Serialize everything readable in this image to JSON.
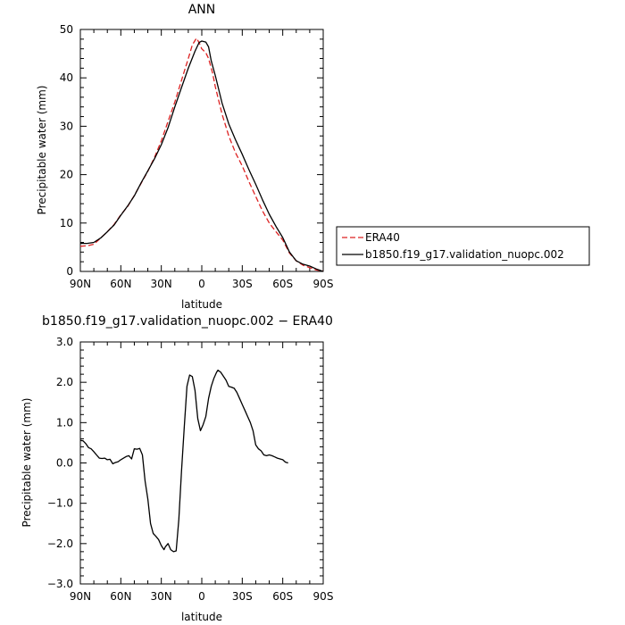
{
  "chart_data": [
    {
      "type": "line",
      "title": "ANN",
      "xlabel": "latitude",
      "ylabel": "Precipitable water (mm)",
      "xlim": [
        90,
        -90
      ],
      "ylim": [
        0,
        50
      ],
      "x_ticks": [
        90,
        60,
        30,
        0,
        -30,
        -60,
        -90
      ],
      "x_tick_labels": [
        "90N",
        "60N",
        "30N",
        "0",
        "30S",
        "60S",
        "90S"
      ],
      "y_ticks": [
        0,
        10,
        20,
        30,
        40,
        50
      ],
      "y_tick_labels": [
        "0",
        "10",
        "20",
        "30",
        "40",
        "50"
      ],
      "grid": false,
      "legend_position": "right",
      "series": [
        {
          "name": "ERA40",
          "color": "#dd2222",
          "dash": "dashed",
          "points": [
            [
              90,
              5.2
            ],
            [
              85,
              5.3
            ],
            [
              80,
              5.6
            ],
            [
              75,
              6.9
            ],
            [
              70,
              8.2
            ],
            [
              65,
              9.7
            ],
            [
              60,
              11.7
            ],
            [
              55,
              13.4
            ],
            [
              50,
              15.7
            ],
            [
              45,
              18.2
            ],
            [
              40,
              20.7
            ],
            [
              35,
              23.6
            ],
            [
              30,
              27.0
            ],
            [
              25,
              31.0
            ],
            [
              20,
              35.0
            ],
            [
              15,
              39.5
            ],
            [
              10,
              44.0
            ],
            [
              7,
              46.8
            ],
            [
              4,
              48.2
            ],
            [
              2,
              47.3
            ],
            [
              0,
              46.0
            ],
            [
              -3,
              45.2
            ],
            [
              -5,
              44.0
            ],
            [
              -8,
              41.0
            ],
            [
              -10,
              38.2
            ],
            [
              -15,
              32.5
            ],
            [
              -20,
              28.0
            ],
            [
              -25,
              24.5
            ],
            [
              -30,
              21.8
            ],
            [
              -35,
              18.5
            ],
            [
              -40,
              15.5
            ],
            [
              -45,
              12.5
            ],
            [
              -50,
              10.0
            ],
            [
              -55,
              8.2
            ],
            [
              -60,
              6.5
            ],
            [
              -65,
              3.8
            ],
            [
              -70,
              2.2
            ],
            [
              -75,
              1.3
            ],
            [
              -80,
              0.8
            ],
            [
              -85,
              0.3
            ],
            [
              -90,
              0.1
            ]
          ]
        },
        {
          "name": "b1850.f19_g17.validation_nuopc.002",
          "color": "#000000",
          "dash": "solid",
          "points": [
            [
              90,
              5.8
            ],
            [
              85,
              5.8
            ],
            [
              80,
              6.0
            ],
            [
              75,
              6.9
            ],
            [
              70,
              8.2
            ],
            [
              65,
              9.6
            ],
            [
              60,
              11.6
            ],
            [
              55,
              13.5
            ],
            [
              50,
              15.6
            ],
            [
              45,
              18.3
            ],
            [
              40,
              20.8
            ],
            [
              35,
              23.3
            ],
            [
              30,
              26.2
            ],
            [
              25,
              29.7
            ],
            [
              20,
              34.0
            ],
            [
              15,
              38.0
            ],
            [
              10,
              42.0
            ],
            [
              5,
              45.5
            ],
            [
              2,
              47.3
            ],
            [
              0,
              47.6
            ],
            [
              -3,
              47.4
            ],
            [
              -5,
              46.4
            ],
            [
              -7,
              43.5
            ],
            [
              -10,
              40.5
            ],
            [
              -15,
              34.8
            ],
            [
              -20,
              30.5
            ],
            [
              -25,
              27.2
            ],
            [
              -30,
              24.2
            ],
            [
              -35,
              21.0
            ],
            [
              -40,
              18.0
            ],
            [
              -45,
              14.8
            ],
            [
              -50,
              11.8
            ],
            [
              -55,
              9.3
            ],
            [
              -60,
              7.0
            ],
            [
              -65,
              4.0
            ],
            [
              -70,
              2.2
            ],
            [
              -75,
              1.5
            ],
            [
              -80,
              1.1
            ],
            [
              -85,
              0.5
            ],
            [
              -90,
              0.0
            ]
          ]
        }
      ]
    },
    {
      "type": "line",
      "title": "b1850.f19_g17.validation_nuopc.002 − ERA40",
      "xlabel": "latitude",
      "ylabel": "Precipitable water (mm)",
      "xlim": [
        90,
        -90
      ],
      "ylim": [
        -3,
        3
      ],
      "x_ticks": [
        90,
        60,
        30,
        0,
        -30,
        -60,
        -90
      ],
      "x_tick_labels": [
        "90N",
        "60N",
        "30N",
        "0",
        "30S",
        "60S",
        "90S"
      ],
      "y_ticks": [
        -3,
        -2,
        -1,
        0,
        1,
        2,
        3
      ],
      "y_tick_labels": [
        "−3.0",
        "−2.0",
        "−1.0",
        "0.0",
        "1.0",
        "2.0",
        "3.0"
      ],
      "grid": false,
      "series": [
        {
          "color": "#000000",
          "dash": "solid",
          "points": [
            [
              90,
              0.56
            ],
            [
              88,
              0.55
            ],
            [
              86,
              0.48
            ],
            [
              84,
              0.38
            ],
            [
              82,
              0.35
            ],
            [
              80,
              0.28
            ],
            [
              78,
              0.2
            ],
            [
              76,
              0.12
            ],
            [
              74,
              0.11
            ],
            [
              72,
              0.12
            ],
            [
              70,
              0.08
            ],
            [
              68,
              0.09
            ],
            [
              66,
              -0.02
            ],
            [
              64,
              0.01
            ],
            [
              62,
              0.03
            ],
            [
              60,
              0.08
            ],
            [
              58,
              0.12
            ],
            [
              56,
              0.16
            ],
            [
              54,
              0.18
            ],
            [
              52,
              0.1
            ],
            [
              50,
              0.35
            ],
            [
              48,
              0.34
            ],
            [
              46,
              0.36
            ],
            [
              44,
              0.2
            ],
            [
              42,
              -0.45
            ],
            [
              40,
              -0.9
            ],
            [
              38,
              -1.5
            ],
            [
              36,
              -1.75
            ],
            [
              34,
              -1.82
            ],
            [
              32,
              -1.9
            ],
            [
              30,
              -2.05
            ],
            [
              28,
              -2.15
            ],
            [
              27,
              -2.08
            ],
            [
              25,
              -2.0
            ],
            [
              23,
              -2.15
            ],
            [
              21,
              -2.2
            ],
            [
              19,
              -2.18
            ],
            [
              17,
              -1.4
            ],
            [
              15,
              -0.2
            ],
            [
              13,
              0.9
            ],
            [
              11,
              1.9
            ],
            [
              9,
              2.18
            ],
            [
              7,
              2.14
            ],
            [
              5,
              1.8
            ],
            [
              3,
              1.1
            ],
            [
              1,
              0.8
            ],
            [
              -1,
              0.95
            ],
            [
              -3,
              1.15
            ],
            [
              -5,
              1.6
            ],
            [
              -7,
              1.9
            ],
            [
              -9,
              2.1
            ],
            [
              -11,
              2.25
            ],
            [
              -12,
              2.3
            ],
            [
              -14,
              2.25
            ],
            [
              -16,
              2.15
            ],
            [
              -18,
              2.05
            ],
            [
              -20,
              1.9
            ],
            [
              -22,
              1.88
            ],
            [
              -24,
              1.85
            ],
            [
              -26,
              1.75
            ],
            [
              -28,
              1.6
            ],
            [
              -30,
              1.45
            ],
            [
              -32,
              1.3
            ],
            [
              -34,
              1.15
            ],
            [
              -36,
              1.0
            ],
            [
              -38,
              0.8
            ],
            [
              -40,
              0.45
            ],
            [
              -42,
              0.35
            ],
            [
              -44,
              0.3
            ],
            [
              -46,
              0.2
            ],
            [
              -48,
              0.18
            ],
            [
              -50,
              0.2
            ],
            [
              -52,
              0.18
            ],
            [
              -54,
              0.15
            ],
            [
              -56,
              0.12
            ],
            [
              -58,
              0.1
            ],
            [
              -60,
              0.08
            ],
            [
              -62,
              0.02
            ],
            [
              -64,
              0.0
            ]
          ]
        }
      ]
    }
  ]
}
